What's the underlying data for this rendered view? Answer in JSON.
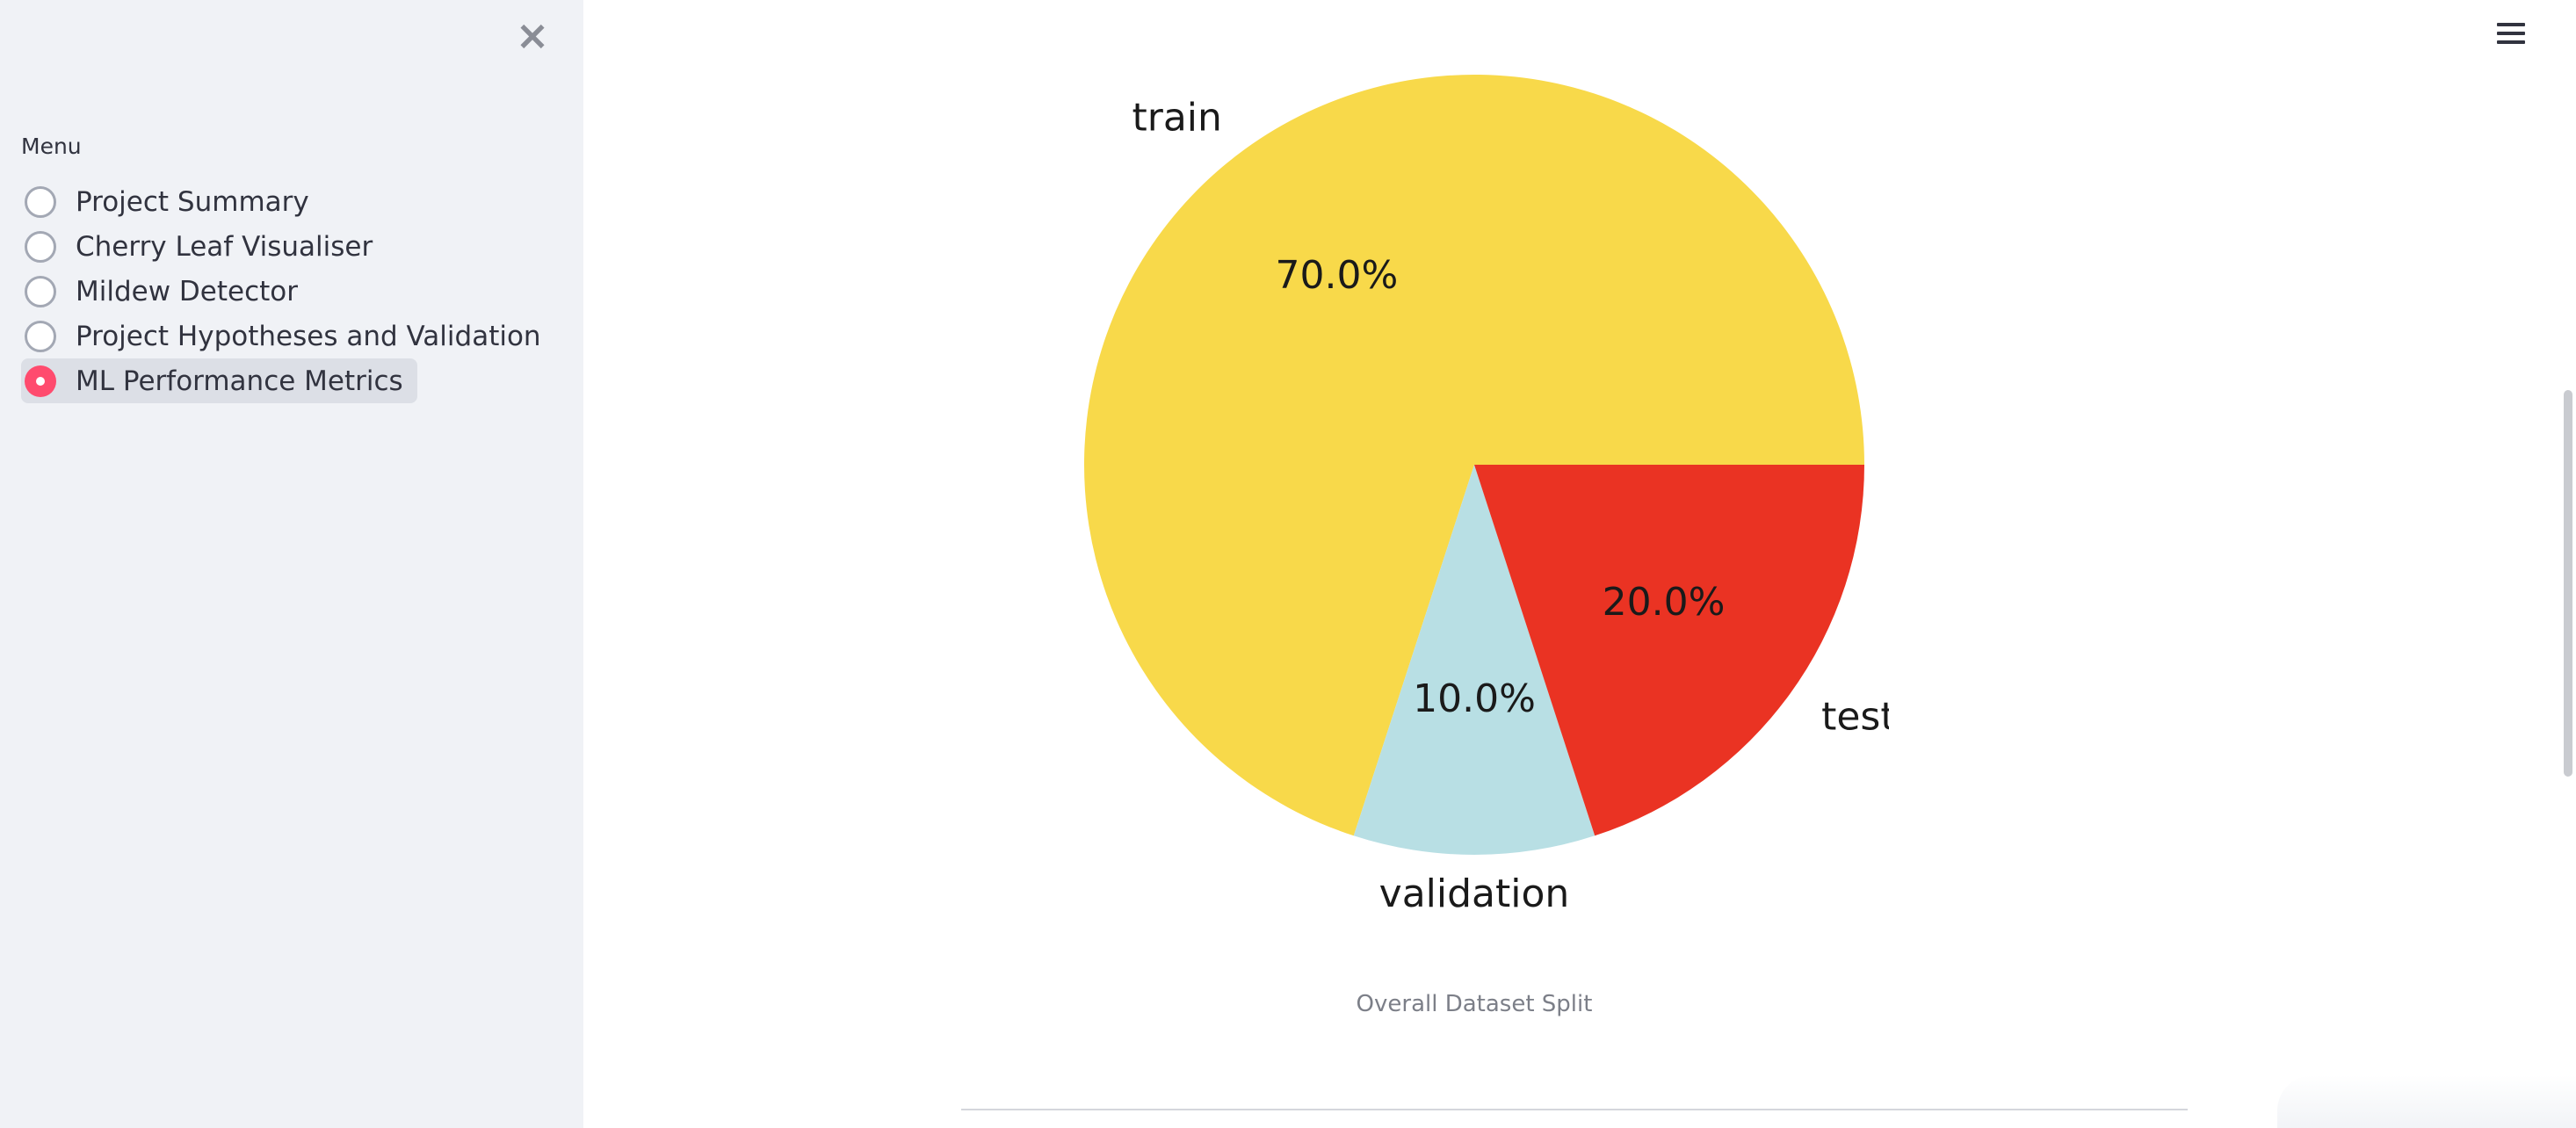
{
  "sidebar": {
    "menu_label": "Menu",
    "items": [
      {
        "label": "Project Summary",
        "selected": false
      },
      {
        "label": "Cherry Leaf Visualiser",
        "selected": false
      },
      {
        "label": "Mildew Detector",
        "selected": false
      },
      {
        "label": "Project Hypotheses and Validation",
        "selected": false
      },
      {
        "label": "ML Performance Metrics",
        "selected": true
      }
    ],
    "accent_color": "#ff4b6e"
  },
  "main": {
    "caption": "Overall Dataset Split"
  },
  "chart_data": {
    "type": "pie",
    "categories": [
      "train",
      "validation",
      "test"
    ],
    "values": [
      70,
      10,
      20
    ],
    "value_labels": [
      "70.0%",
      "10.0%",
      "20.0%"
    ],
    "colors": [
      "#f8d94a",
      "#b8dfe4",
      "#ea3323"
    ],
    "start_angle_deg": 0,
    "direction": "counterclockwise"
  }
}
